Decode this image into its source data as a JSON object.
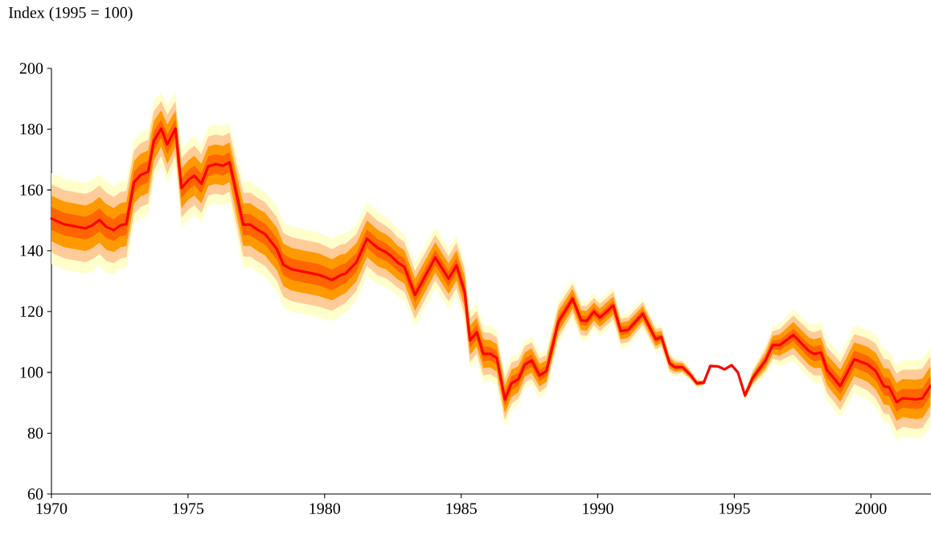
{
  "chart_data": {
    "type": "line",
    "ylabel": "Index (1995 = 100)",
    "xlim": [
      1970,
      2002.2
    ],
    "xticks": [
      1970,
      1975,
      1980,
      1985,
      1990,
      1995,
      2000
    ],
    "ylim": [
      60,
      200
    ],
    "yticks": [
      60,
      80,
      100,
      120,
      140,
      160,
      180,
      200
    ],
    "x": [
      1970.0,
      1970.47,
      1971.25,
      1971.5,
      1971.76,
      1972.0,
      1972.28,
      1972.53,
      1972.74,
      1973.02,
      1973.26,
      1973.54,
      1973.75,
      1974.02,
      1974.24,
      1974.54,
      1974.76,
      1975.03,
      1975.23,
      1975.49,
      1975.74,
      1976.01,
      1976.28,
      1976.52,
      1977.02,
      1977.28,
      1977.55,
      1977.82,
      1978.26,
      1978.49,
      1978.8,
      1979.29,
      1979.79,
      1980.27,
      1980.57,
      1980.76,
      1981.16,
      1981.55,
      1981.94,
      1982.24,
      1982.43,
      1982.68,
      1982.92,
      1983.31,
      1984.05,
      1984.54,
      1984.83,
      1985.13,
      1985.32,
      1985.57,
      1985.81,
      1986.06,
      1986.3,
      1986.6,
      1986.84,
      1987.09,
      1987.33,
      1987.58,
      1987.87,
      1988.12,
      1988.56,
      1989.08,
      1989.39,
      1989.59,
      1989.86,
      1990.08,
      1990.57,
      1990.84,
      1991.11,
      1991.65,
      1992.12,
      1992.33,
      1992.63,
      1992.82,
      1993.1,
      1993.36,
      1993.63,
      1993.88,
      1994.12,
      1994.39,
      1994.64,
      1994.9,
      1995.13,
      1995.39,
      1995.67,
      1996.14,
      1996.4,
      1996.67,
      1997.16,
      1997.73,
      1997.92,
      1998.17,
      1998.39,
      1998.88,
      1999.39,
      1999.88,
      2000.18,
      2000.47,
      2000.67,
      2000.94,
      2001.16,
      2001.65,
      2001.89,
      2002.18
    ],
    "series": [
      {
        "color": "#ffffcc",
        "values": [
          null,
          null,
          null,
          null,
          null,
          null,
          null,
          null,
          null,
          null,
          null,
          null,
          null,
          null,
          null,
          null,
          null,
          null,
          null,
          null,
          null,
          null,
          null,
          null,
          null,
          null,
          null,
          null,
          null,
          null,
          null,
          null,
          null,
          null,
          null,
          null,
          null,
          null,
          null,
          null,
          null,
          null,
          null,
          null,
          null,
          null,
          null,
          null,
          null,
          null,
          null,
          null,
          null,
          null,
          null,
          null,
          null,
          null,
          null,
          null,
          null,
          null,
          null,
          null,
          null,
          null,
          null,
          null,
          null,
          null,
          null,
          null,
          null,
          null,
          null,
          null,
          null,
          null,
          null,
          null,
          null,
          null,
          null,
          null,
          null,
          null,
          null,
          null,
          null,
          null,
          null,
          null,
          null,
          null,
          null,
          null,
          null,
          null,
          null,
          null,
          null,
          null,
          null,
          null
        ],
        "lower": [
          135.6,
          133.7,
          132.4,
          133.4,
          135.2,
          132.9,
          132.3,
          133.9,
          134.3,
          148.5,
          150.9,
          152.0,
          163.2,
          168.2,
          162.0,
          168.2,
          147.6,
          150.4,
          151.7,
          149.1,
          154.8,
          155.5,
          155.0,
          156.1,
          134.6,
          134.6,
          132.9,
          131.5,
          126.5,
          121.4,
          119.9,
          119.0,
          118.1,
          116.9,
          118.4,
          119.5,
          123.6,
          132.0,
          128.9,
          128.1,
          126.8,
          125.1,
          123.7,
          115.0,
          127.8,
          120.8,
          125.2,
          116.4,
          101.0,
          103.7,
          96.6,
          97.1,
          95.8,
          82.1,
          87.4,
          89.2,
          94.6,
          95.9,
          91.5,
          93.4,
          109.7,
          117.7,
          110.6,
          110.4,
          114.0,
          112.0,
          116.0,
          108.1,
          108.5,
          114.3,
          106.4,
          107.6,
          99.5,
          98.7,
          99.2,
          97.5,
          94.9,
          95.6,
          102.1,
          102.0,
          101.0,
          102.4,
          100.0,
          90.9,
          95.1,
          98.9,
          103.0,
          102.0,
          103.8,
          98.0,
          96.6,
          96.5,
          90.8,
          85.0,
          93.3,
          91.1,
          88.4,
          83.5,
          83.1,
          77.7,
          79.0,
          78.1,
          78.5,
          82.5
        ],
        "upper": [
          165.6,
          163.7,
          162.4,
          163.4,
          165.2,
          162.9,
          161.3,
          162.9,
          163.3,
          176.5,
          178.9,
          180.0,
          189.2,
          192.2,
          188.0,
          192.2,
          173.6,
          176.4,
          177.7,
          175.1,
          180.8,
          181.5,
          181.0,
          182.1,
          162.6,
          162.6,
          160.9,
          159.5,
          154.5,
          149.4,
          147.9,
          147.0,
          146.1,
          143.9,
          145.4,
          145.5,
          148.6,
          156.0,
          152.9,
          151.1,
          149.8,
          147.1,
          145.7,
          136.0,
          147.8,
          140.8,
          145.2,
          136.4,
          120.0,
          122.7,
          115.6,
          115.1,
          113.8,
          100.1,
          105.4,
          106.2,
          110.6,
          111.9,
          106.5,
          107.4,
          123.7,
          130.7,
          123.6,
          123.4,
          126.0,
          124.0,
          128.0,
          119.1,
          119.5,
          124.3,
          115.4,
          115.6,
          106.5,
          104.7,
          104.2,
          101.5,
          97.9,
          97.6,
          102.1,
          102.0,
          101.0,
          102.4,
          100.0,
          93.9,
          101.1,
          108.9,
          115.0,
          116.0,
          120.8,
          116.0,
          115.6,
          116.5,
          110.8,
          106.0,
          115.3,
          114.1,
          112.4,
          107.5,
          107.1,
          102.7,
          104.0,
          104.1,
          104.5,
          108.5
        ]
      },
      {
        "color": "#ffcc99",
        "values": [
          null,
          null,
          null,
          null,
          null,
          null,
          null,
          null,
          null,
          null,
          null,
          null,
          null,
          null,
          null,
          null,
          null,
          null,
          null,
          null,
          null,
          null,
          null,
          null,
          null,
          null,
          null,
          null,
          null,
          null,
          null,
          null,
          null,
          null,
          null,
          null,
          null,
          null,
          null,
          null,
          null,
          null,
          null,
          null,
          null,
          null,
          null,
          null,
          null,
          null,
          null,
          null,
          null,
          null,
          null,
          null,
          null,
          null,
          null,
          null,
          null,
          null,
          null,
          null,
          null,
          null,
          null,
          null,
          null,
          null,
          null,
          null,
          null,
          null,
          null,
          null,
          null,
          null,
          null,
          null,
          null,
          null,
          null,
          null,
          null,
          null,
          null,
          null,
          null,
          null,
          null,
          null,
          null,
          null,
          null,
          null,
          null,
          null,
          null,
          null,
          null,
          null,
          null,
          null
        ],
        "lower": [
          139.4,
          137.5,
          136.2,
          137.2,
          139.0,
          136.7,
          135.9,
          137.5,
          137.9,
          152.0,
          154.4,
          155.5,
          166.5,
          171.2,
          165.3,
          171.2,
          150.9,
          153.7,
          155.0,
          152.4,
          158.1,
          158.8,
          158.3,
          159.4,
          138.1,
          138.1,
          136.4,
          135.0,
          130.0,
          124.9,
          123.4,
          122.5,
          121.6,
          120.3,
          121.8,
          122.8,
          126.7,
          135.0,
          131.9,
          131.0,
          129.7,
          127.9,
          126.5,
          117.6,
          130.3,
          123.3,
          127.7,
          118.9,
          103.4,
          106.1,
          99.0,
          99.4,
          98.1,
          84.4,
          89.7,
          91.3,
          96.6,
          97.9,
          93.4,
          95.2,
          111.5,
          119.3,
          112.2,
          112.0,
          115.5,
          113.5,
          117.5,
          109.5,
          109.9,
          115.6,
          107.5,
          108.6,
          100.4,
          99.5,
          99.8,
          98.0,
          95.3,
          95.9,
          102.1,
          102.0,
          101.0,
          102.4,
          100.0,
          91.3,
          95.9,
          100.2,
          104.5,
          103.8,
          105.9,
          100.3,
          99.0,
          99.0,
          93.3,
          87.6,
          96.1,
          94.0,
          91.4,
          86.5,
          86.1,
          80.8,
          82.1,
          81.4,
          81.8,
          85.8
        ],
        "upper": [
          161.9,
          160.0,
          158.7,
          159.7,
          161.5,
          159.2,
          157.7,
          159.3,
          159.7,
          173.0,
          175.4,
          176.5,
          186.0,
          189.2,
          184.8,
          189.2,
          170.4,
          173.2,
          174.5,
          171.9,
          177.6,
          178.3,
          177.8,
          178.9,
          159.1,
          159.1,
          157.4,
          156.0,
          151.0,
          145.9,
          144.4,
          143.5,
          142.6,
          140.5,
          142.0,
          142.3,
          145.5,
          153.0,
          149.9,
          148.2,
          146.9,
          144.4,
          143.0,
          133.4,
          145.3,
          138.3,
          142.7,
          133.9,
          117.6,
          120.3,
          113.2,
          112.9,
          111.6,
          97.9,
          103.2,
          104.1,
          108.6,
          109.9,
          104.6,
          105.7,
          122.0,
          129.1,
          122.0,
          121.8,
          124.5,
          122.5,
          126.5,
          117.7,
          118.1,
          123.1,
          114.3,
          114.6,
          105.6,
          104.0,
          103.6,
          101.0,
          97.5,
          97.4,
          102.1,
          102.0,
          101.0,
          102.4,
          100.0,
          93.5,
          100.4,
          107.7,
          113.5,
          114.3,
          118.7,
          113.8,
          113.2,
          114.0,
          108.3,
          103.4,
          112.6,
          111.2,
          109.4,
          104.5,
          104.1,
          99.6,
          100.9,
          100.9,
          101.3,
          105.3
        ]
      },
      {
        "color": "#ff9900",
        "values": [
          null,
          null,
          null,
          null,
          null,
          null,
          null,
          null,
          null,
          null,
          null,
          null,
          null,
          null,
          null,
          null,
          null,
          null,
          null,
          null,
          null,
          null,
          null,
          null,
          null,
          null,
          null,
          null,
          null,
          null,
          null,
          null,
          null,
          null,
          null,
          null,
          null,
          null,
          null,
          null,
          null,
          null,
          null,
          null,
          null,
          null,
          null,
          null,
          null,
          null,
          null,
          null,
          null,
          null,
          null,
          null,
          null,
          null,
          null,
          null,
          null,
          null,
          null,
          null,
          null,
          null,
          null,
          null,
          null,
          null,
          null,
          null,
          null,
          null,
          null,
          null,
          null,
          null,
          null,
          null,
          null,
          null,
          null,
          null,
          null,
          null,
          null,
          null,
          null,
          null,
          null,
          null,
          null,
          null,
          null,
          null,
          null,
          null,
          null,
          null,
          null,
          null,
          null,
          null
        ],
        "lower": [
          143.1,
          141.2,
          139.9,
          140.9,
          142.7,
          140.4,
          139.6,
          141.2,
          141.6,
          155.5,
          157.9,
          159.0,
          169.7,
          174.2,
          168.5,
          174.2,
          154.1,
          156.9,
          158.2,
          155.6,
          161.3,
          162.0,
          161.5,
          162.6,
          141.6,
          141.6,
          139.9,
          138.5,
          133.5,
          128.4,
          126.9,
          126.0,
          125.1,
          123.7,
          125.2,
          126.0,
          129.9,
          138.0,
          134.9,
          133.9,
          132.6,
          130.6,
          129.2,
          120.3,
          132.8,
          125.8,
          130.2,
          121.4,
          105.8,
          108.5,
          101.4,
          101.6,
          100.3,
          86.6,
          91.9,
          93.5,
          98.6,
          99.9,
          95.3,
          96.9,
          113.2,
          121.0,
          113.9,
          113.7,
          117.0,
          115.0,
          119.0,
          110.9,
          111.3,
          116.8,
          108.7,
          109.6,
          101.3,
          100.2,
          100.5,
          98.5,
          95.7,
          96.1,
          102.1,
          102.0,
          101.0,
          102.4,
          100.0,
          91.7,
          96.6,
          101.4,
          106.0,
          105.5,
          108.1,
          102.5,
          101.4,
          101.5,
          95.8,
          90.3,
          98.8,
          96.9,
          94.4,
          89.5,
          89.1,
          84.0,
          85.3,
          84.6,
          85.0,
          89.0
        ],
        "upper": [
          158.1,
          156.2,
          154.9,
          155.9,
          157.7,
          155.4,
          154.1,
          155.7,
          156.1,
          169.5,
          171.9,
          173.0,
          182.7,
          186.2,
          181.5,
          186.2,
          167.1,
          169.9,
          171.2,
          168.6,
          174.3,
          175.0,
          174.5,
          175.6,
          155.6,
          155.6,
          153.9,
          152.5,
          147.5,
          142.4,
          140.9,
          140.0,
          139.1,
          137.2,
          138.7,
          139.0,
          142.4,
          150.0,
          146.9,
          145.4,
          144.1,
          141.6,
          140.2,
          130.8,
          142.8,
          135.8,
          140.2,
          131.4,
          115.3,
          118.0,
          110.9,
          110.6,
          109.3,
          95.6,
          100.9,
          102.0,
          106.6,
          107.9,
          102.8,
          103.9,
          120.2,
          127.5,
          120.4,
          120.2,
          123.0,
          121.0,
          125.0,
          116.4,
          116.8,
          121.8,
          113.2,
          113.6,
          104.8,
          103.2,
          103.0,
          100.5,
          97.2,
          97.1,
          102.1,
          102.0,
          101.0,
          102.4,
          100.0,
          93.2,
          99.6,
          106.4,
          112.0,
          112.5,
          116.6,
          111.5,
          110.9,
          111.5,
          105.8,
          100.8,
          109.8,
          108.4,
          106.4,
          101.5,
          101.1,
          96.5,
          97.8,
          97.6,
          98.0,
          102.0
        ]
      },
      {
        "color": "#ff6600",
        "values": [
          null,
          null,
          null,
          null,
          null,
          null,
          null,
          null,
          null,
          null,
          null,
          null,
          null,
          null,
          null,
          null,
          null,
          null,
          null,
          null,
          null,
          null,
          null,
          null,
          null,
          null,
          null,
          null,
          null,
          null,
          null,
          null,
          null,
          null,
          null,
          null,
          null,
          null,
          null,
          null,
          null,
          null,
          null,
          null,
          null,
          null,
          null,
          null,
          null,
          null,
          null,
          null,
          null,
          null,
          null,
          null,
          null,
          null,
          null,
          null,
          null,
          null,
          null,
          null,
          null,
          null,
          null,
          null,
          null,
          null,
          null,
          null,
          null,
          null,
          null,
          null,
          null,
          null,
          null,
          null,
          null,
          null,
          null,
          null,
          null,
          null,
          null,
          null,
          null,
          null,
          null,
          null,
          null,
          null,
          null,
          null,
          null,
          null,
          null,
          null,
          null,
          null,
          null,
          null
        ],
        "lower": [
          146.9,
          145.0,
          143.7,
          144.7,
          146.5,
          144.2,
          143.2,
          144.8,
          145.2,
          159.0,
          161.4,
          162.5,
          173.0,
          177.2,
          171.8,
          177.2,
          157.4,
          160.2,
          161.5,
          158.9,
          164.6,
          165.3,
          164.8,
          165.9,
          145.1,
          145.1,
          143.4,
          142.0,
          137.0,
          131.9,
          130.4,
          129.5,
          128.6,
          127.0,
          128.5,
          129.3,
          133.0,
          141.0,
          137.9,
          136.7,
          135.4,
          133.4,
          132.0,
          122.9,
          135.3,
          128.3,
          132.7,
          123.9,
          108.1,
          110.8,
          103.7,
          103.9,
          102.6,
          88.9,
          94.2,
          95.6,
          100.6,
          101.9,
          97.1,
          98.7,
          115.0,
          122.6,
          115.5,
          115.3,
          118.5,
          116.5,
          120.5,
          112.2,
          112.6,
          118.1,
          109.8,
          110.6,
          102.1,
          101.0,
          101.1,
          99.0,
          96.0,
          96.4,
          102.1,
          102.0,
          101.0,
          102.4,
          100.0,
          92.0,
          97.4,
          102.7,
          107.5,
          107.3,
          110.2,
          104.8,
          103.7,
          104.0,
          98.3,
          92.9,
          101.6,
          99.7,
          97.4,
          92.5,
          92.1,
          87.1,
          88.4,
          87.9,
          88.3,
          92.3
        ],
        "upper": [
          154.4,
          152.5,
          151.2,
          152.2,
          154.0,
          151.7,
          150.4,
          152.0,
          152.4,
          166.0,
          168.4,
          169.5,
          179.5,
          183.2,
          178.3,
          183.2,
          163.9,
          166.7,
          168.0,
          165.4,
          171.1,
          171.8,
          171.3,
          172.4,
          152.1,
          152.1,
          150.4,
          149.0,
          144.0,
          138.9,
          137.4,
          136.5,
          135.6,
          133.8,
          135.3,
          135.8,
          139.2,
          147.0,
          143.9,
          142.5,
          141.2,
          138.9,
          137.5,
          128.1,
          140.3,
          133.3,
          137.7,
          128.9,
          112.9,
          115.6,
          108.5,
          108.4,
          107.1,
          93.4,
          98.7,
          99.8,
          104.6,
          105.9,
          100.9,
          102.2,
          118.5,
          125.8,
          118.7,
          118.5,
          121.5,
          119.5,
          123.5,
          115.0,
          115.4,
          120.6,
          112.0,
          112.6,
          103.9,
          102.5,
          102.3,
          100.0,
          96.8,
          96.9,
          102.1,
          102.0,
          101.0,
          102.4,
          100.0,
          92.8,
          98.9,
          105.2,
          110.5,
          110.8,
          114.4,
          109.3,
          108.5,
          109.0,
          103.3,
          98.1,
          107.1,
          105.5,
          103.4,
          98.5,
          98.1,
          93.3,
          94.6,
          94.4,
          94.8,
          98.8
        ]
      },
      {
        "color": "#ff0000",
        "values": [
          150.6,
          148.7,
          147.4,
          148.4,
          150.2,
          147.9,
          146.8,
          148.4,
          148.8,
          162.5,
          164.9,
          166.0,
          176.2,
          180.2,
          175.0,
          180.2,
          160.6,
          163.4,
          164.7,
          162.1,
          167.8,
          168.5,
          168.0,
          169.1,
          148.6,
          148.6,
          146.9,
          145.5,
          140.5,
          135.4,
          133.9,
          133.0,
          132.1,
          130.4,
          131.9,
          132.5,
          136.1,
          144.0,
          140.9,
          139.6,
          138.3,
          136.1,
          134.7,
          125.5,
          137.8,
          130.8,
          135.2,
          126.4,
          110.5,
          113.2,
          106.1,
          106.1,
          104.8,
          91.1,
          96.4,
          97.7,
          102.6,
          103.9,
          99.0,
          100.4,
          116.7,
          124.2,
          117.1,
          116.9,
          120.0,
          118.0,
          122.0,
          113.6,
          114.0,
          119.3,
          110.9,
          111.6,
          103.0,
          101.7,
          101.7,
          99.5,
          96.4,
          96.6,
          102.1,
          102.0,
          101.0,
          102.4,
          100.0,
          92.4,
          98.1,
          103.9,
          109.0,
          109.0,
          112.3,
          107.0,
          106.1,
          106.5,
          100.8,
          95.5,
          104.3,
          102.6,
          100.4,
          95.5,
          95.1,
          90.2,
          91.5,
          91.1,
          91.5,
          95.5
        ]
      }
    ]
  }
}
